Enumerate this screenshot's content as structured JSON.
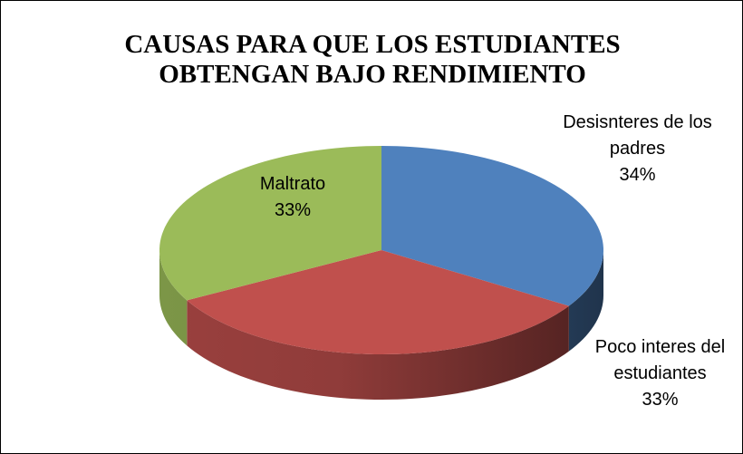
{
  "chart_data": {
    "type": "pie",
    "title": "CAUSAS PARA QUE LOS ESTUDIANTES OBTENGAN BAJO RENDIMIENTO",
    "categories": [
      "Desisnteres de los padres",
      "Poco interes del estudiantes",
      "Maltrato"
    ],
    "values": [
      34,
      33,
      33
    ],
    "value_labels": [
      "34%",
      "33%",
      "33%"
    ],
    "colors": [
      "#4f81bd",
      "#c0504d",
      "#9bbb59"
    ]
  }
}
